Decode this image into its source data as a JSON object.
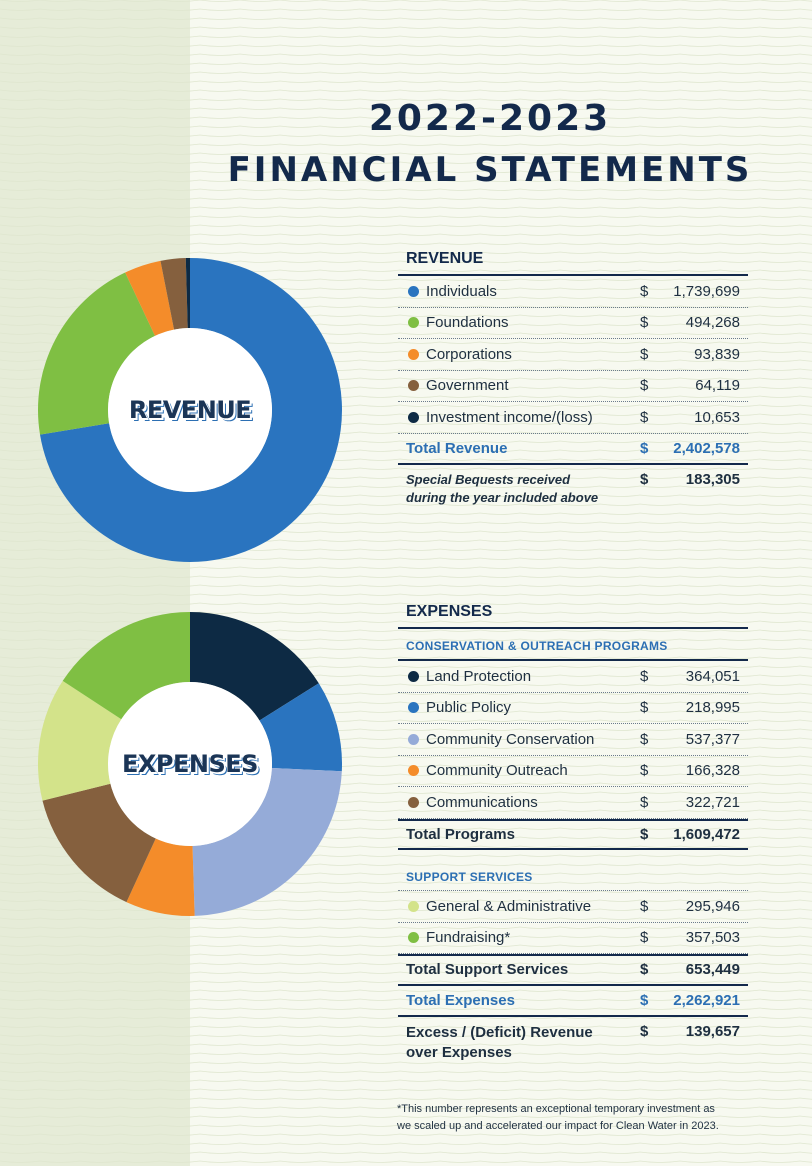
{
  "title": {
    "line1": "2022-2023",
    "line2": "FINANCIAL STATEMENTS"
  },
  "colors": {
    "blue": "#2a74bf",
    "green": "#7fbf43",
    "orange": "#f48c2a",
    "brown": "#85603e",
    "navy": "#0d2a44",
    "light_blue": "#95abd8",
    "light_green": "#d3e38a"
  },
  "chart_data": [
    {
      "type": "pie",
      "donut_label": "REVENUE",
      "categories": [
        "Individuals",
        "Foundations",
        "Corporations",
        "Government",
        "Investment income/(loss)"
      ],
      "values": [
        1739699,
        494268,
        93839,
        64119,
        10653
      ],
      "colors": [
        "#2a74bf",
        "#7fbf43",
        "#f48c2a",
        "#85603e",
        "#0d2a44"
      ]
    },
    {
      "type": "pie",
      "donut_label": "EXPENSES",
      "categories": [
        "Land Protection",
        "Public Policy",
        "Community Conservation",
        "Community Outreach",
        "Communications",
        "General & Administrative",
        "Fundraising*"
      ],
      "values": [
        364051,
        218995,
        537377,
        166328,
        322721,
        295946,
        357503
      ],
      "colors": [
        "#0d2a44",
        "#2a74bf",
        "#95abd8",
        "#f48c2a",
        "#85603e",
        "#d3e38a",
        "#7fbf43"
      ]
    }
  ],
  "revenue": {
    "heading": "REVENUE",
    "currency": "$",
    "rows": [
      {
        "label": "Individuals",
        "amount": "1,739,699"
      },
      {
        "label": "Foundations",
        "amount": "494,268"
      },
      {
        "label": "Corporations",
        "amount": "93,839"
      },
      {
        "label": "Government",
        "amount": "64,119"
      },
      {
        "label": "Investment income/(loss)",
        "amount": "10,653"
      }
    ],
    "total_label": "Total Revenue",
    "total_amount": "2,402,578",
    "bequest_line1": "Special Bequests received",
    "bequest_line2": "during the year included above",
    "bequest_amount": "183,305"
  },
  "expenses": {
    "heading": "EXPENSES",
    "currency": "$",
    "programs_heading": "CONSERVATION & OUTREACH PROGRAMS",
    "programs": [
      {
        "label": "Land Protection",
        "amount": "364,051"
      },
      {
        "label": "Public Policy",
        "amount": "218,995"
      },
      {
        "label": "Community Conservation",
        "amount": "537,377"
      },
      {
        "label": "Community Outreach",
        "amount": "166,328"
      },
      {
        "label": "Communications",
        "amount": "322,721"
      }
    ],
    "total_programs_label": "Total Programs",
    "total_programs_amount": "1,609,472",
    "support_heading": "SUPPORT SERVICES",
    "support": [
      {
        "label": "General & Administrative",
        "amount": "295,946"
      },
      {
        "label": "Fundraising*",
        "amount": "357,503"
      }
    ],
    "total_support_label": "Total Support Services",
    "total_support_amount": "653,449",
    "total_expenses_label": "Total Expenses",
    "total_expenses_amount": "2,262,921",
    "excess_line1": "Excess / (Deficit) Revenue",
    "excess_line2": "over Expenses",
    "excess_amount": "139,657"
  },
  "footnote": {
    "line1": "*This number represents an exceptional temporary investment as",
    "line2": "we scaled up and accelerated our impact for Clean Water in 2023."
  }
}
